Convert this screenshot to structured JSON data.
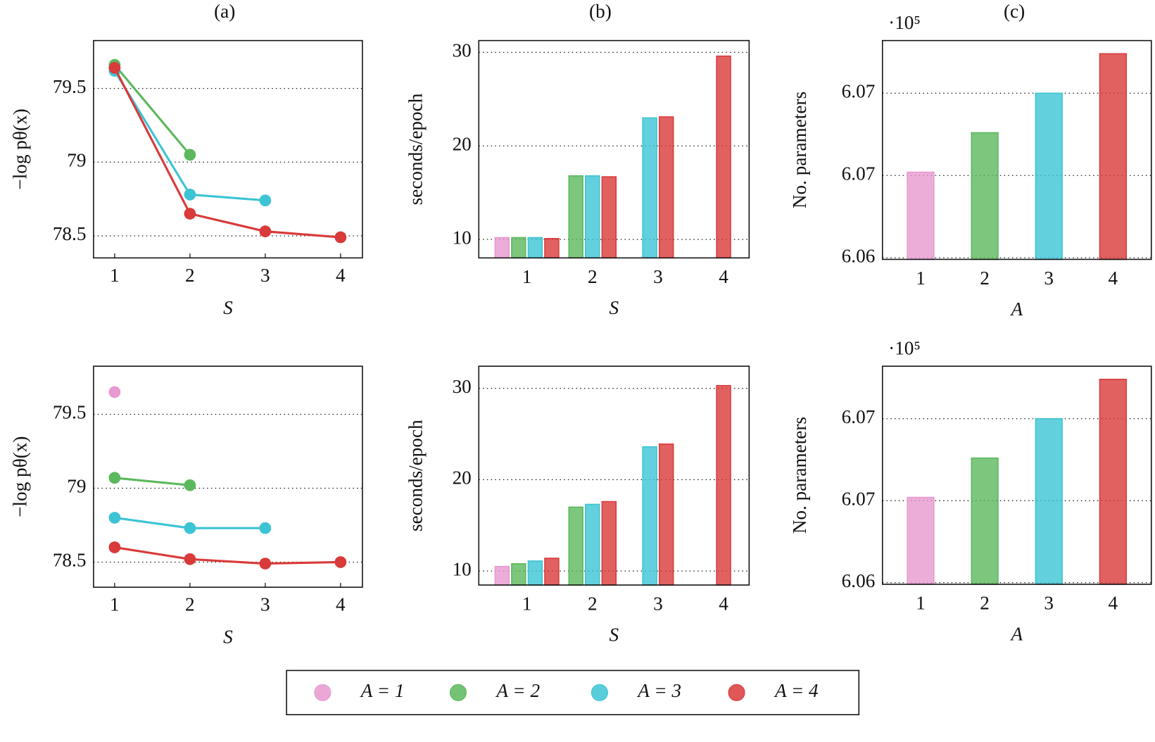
{
  "chart_data": [
    {
      "type": "line",
      "title": "(a)",
      "xlabel": "S",
      "ylabel": "−log pθ(x)",
      "x": [
        1,
        2,
        3,
        4
      ],
      "xlim": [
        0.72,
        4.29
      ],
      "xticks": [
        1,
        2,
        3,
        4
      ],
      "ylim": [
        78.35,
        79.825
      ],
      "yticks": [
        78.5,
        79,
        79.5
      ],
      "grid": true,
      "series": [
        {
          "color": "#e899d0",
          "values": [
            79.64,
            null,
            null,
            null
          ]
        },
        {
          "color": "#5cb85c",
          "values": [
            79.66,
            79.05,
            null,
            null
          ]
        },
        {
          "color": "#3cc4d4",
          "values": [
            79.62,
            78.78,
            78.74,
            null
          ]
        },
        {
          "color": "#d93a3a",
          "values": [
            79.64,
            78.65,
            78.53,
            78.49
          ]
        }
      ]
    },
    {
      "type": "bar",
      "title": "(b)",
      "xlabel": "S",
      "ylabel": "seconds/epoch",
      "categories": [
        "1",
        "2",
        "3",
        "4"
      ],
      "ylim": [
        8.03,
        31.26
      ],
      "yticks": [
        10,
        20,
        30
      ],
      "grid": true,
      "series": [
        {
          "color": "#e899d0",
          "values": [
            10.2,
            null,
            null,
            null
          ]
        },
        {
          "color": "#5cb85c",
          "values": [
            10.2,
            16.8,
            null,
            null
          ]
        },
        {
          "color": "#3cc4d4",
          "values": [
            10.2,
            16.8,
            23.0,
            null
          ]
        },
        {
          "color": "#d93a3a",
          "values": [
            10.1,
            16.7,
            23.1,
            29.6
          ]
        }
      ]
    },
    {
      "type": "bar",
      "title": "(c)",
      "xlabel": "A",
      "ylabel": "No. parameters",
      "y_multiplier": "·10⁵",
      "categories": [
        "1",
        "2",
        "3",
        "4"
      ],
      "ylim": [
        6.0599,
        6.0732
      ],
      "yticks": [
        6.06,
        {
          "value": 6.065,
          "label": "6.07"
        },
        6.07
      ],
      "grid": true,
      "values": [
        6.0652,
        6.0676,
        6.07,
        6.0724
      ],
      "colors": [
        "#e899d0",
        "#5cb85c",
        "#3cc4d4",
        "#d93a3a"
      ]
    },
    {
      "type": "line",
      "xlabel": "S",
      "ylabel": "−log pθ(x)",
      "x": [
        1,
        2,
        3,
        4
      ],
      "xlim": [
        0.72,
        4.29
      ],
      "xticks": [
        1,
        2,
        3,
        4
      ],
      "ylim": [
        78.33,
        79.825
      ],
      "yticks": [
        78.5,
        79,
        79.5
      ],
      "grid": true,
      "series": [
        {
          "color": "#e899d0",
          "values": [
            79.65,
            null,
            null,
            null
          ]
        },
        {
          "color": "#5cb85c",
          "values": [
            79.07,
            79.02,
            null,
            null
          ]
        },
        {
          "color": "#3cc4d4",
          "values": [
            78.8,
            78.73,
            78.73,
            null
          ]
        },
        {
          "color": "#d93a3a",
          "values": [
            78.6,
            78.52,
            78.49,
            78.5
          ]
        }
      ]
    },
    {
      "type": "bar",
      "xlabel": "S",
      "ylabel": "seconds/epoch",
      "categories": [
        "1",
        "2",
        "3",
        "4"
      ],
      "ylim": [
        8.47,
        32.42
      ],
      "yticks": [
        10,
        20,
        30
      ],
      "grid": true,
      "series": [
        {
          "color": "#e899d0",
          "values": [
            10.5,
            null,
            null,
            null
          ]
        },
        {
          "color": "#5cb85c",
          "values": [
            10.8,
            17.0,
            null,
            null
          ]
        },
        {
          "color": "#3cc4d4",
          "values": [
            11.1,
            17.3,
            23.6,
            null
          ]
        },
        {
          "color": "#d93a3a",
          "values": [
            11.4,
            17.6,
            23.9,
            30.3
          ]
        }
      ]
    },
    {
      "type": "bar",
      "xlabel": "A",
      "ylabel": "No. parameters",
      "y_multiplier": "·10⁵",
      "categories": [
        "1",
        "2",
        "3",
        "4"
      ],
      "ylim": [
        6.0599,
        6.0732
      ],
      "yticks": [
        6.06,
        {
          "value": 6.065,
          "label": "6.07"
        },
        6.07
      ],
      "grid": true,
      "values": [
        6.0652,
        6.0676,
        6.07,
        6.0724
      ],
      "colors": [
        "#e899d0",
        "#5cb85c",
        "#3cc4d4",
        "#d93a3a"
      ]
    }
  ],
  "legend": {
    "entries": [
      {
        "name": "A = 1",
        "color": "#e899d0"
      },
      {
        "name": "A = 2",
        "color": "#5cb85c"
      },
      {
        "name": "A = 3",
        "color": "#3cc4d4"
      },
      {
        "name": "A = 4",
        "color": "#d93a3a"
      }
    ]
  }
}
